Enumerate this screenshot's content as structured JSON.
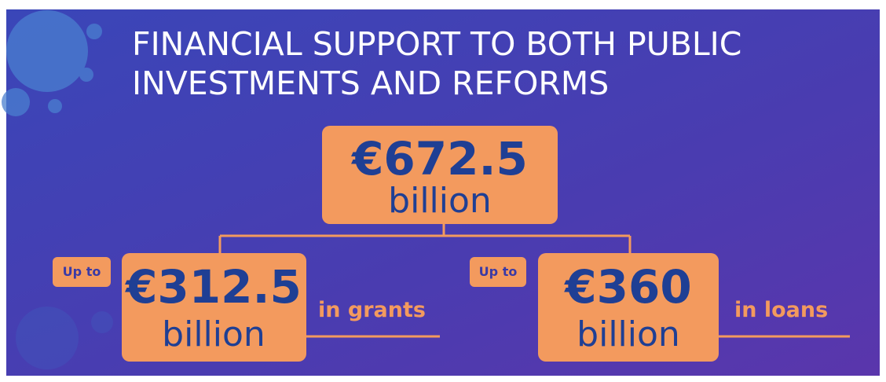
{
  "title": {
    "lines": [
      "FINANCIAL SUPPORT TO BOTH PUBLIC",
      "INVESTMENTS AND REFORMS"
    ]
  },
  "total": {
    "amount": "€672.5",
    "unit": "billion"
  },
  "grants": {
    "prefix": "Up to",
    "amount": "€312.5",
    "unit": "billion",
    "suffix": "in grants"
  },
  "loans": {
    "prefix": "Up to",
    "amount": "€360",
    "unit": "billion",
    "suffix": "in loans"
  }
}
